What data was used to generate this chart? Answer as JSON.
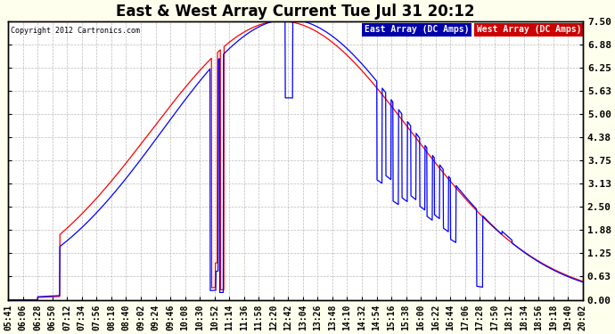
{
  "title": "East & West Array Current Tue Jul 31 20:12",
  "copyright": "Copyright 2012 Cartronics.com",
  "legend_east": "East Array (DC Amps)",
  "legend_west": "West Array (DC Amps)",
  "east_color": "#0000ff",
  "west_color": "#ff0000",
  "legend_east_bg": "#0000aa",
  "legend_west_bg": "#cc0000",
  "ylim": [
    0.0,
    7.5
  ],
  "yticks": [
    0.0,
    0.63,
    1.25,
    1.88,
    2.5,
    3.13,
    3.75,
    4.38,
    5.0,
    5.63,
    6.25,
    6.88,
    7.5
  ],
  "background_color": "#ffffee",
  "plot_bg": "#ffffff",
  "grid_color": "#bbbbbb",
  "title_fontsize": 12,
  "label_fontsize": 7,
  "x_tick_labels": [
    "05:41",
    "06:06",
    "06:28",
    "06:50",
    "07:12",
    "07:34",
    "07:56",
    "08:18",
    "08:40",
    "09:02",
    "09:24",
    "09:46",
    "10:08",
    "10:30",
    "10:52",
    "11:14",
    "11:36",
    "11:58",
    "12:20",
    "12:42",
    "13:04",
    "13:26",
    "13:48",
    "14:10",
    "14:32",
    "14:54",
    "15:16",
    "15:38",
    "16:00",
    "16:22",
    "16:44",
    "17:06",
    "17:28",
    "17:50",
    "18:12",
    "18:34",
    "18:56",
    "19:18",
    "19:40",
    "20:02"
  ]
}
